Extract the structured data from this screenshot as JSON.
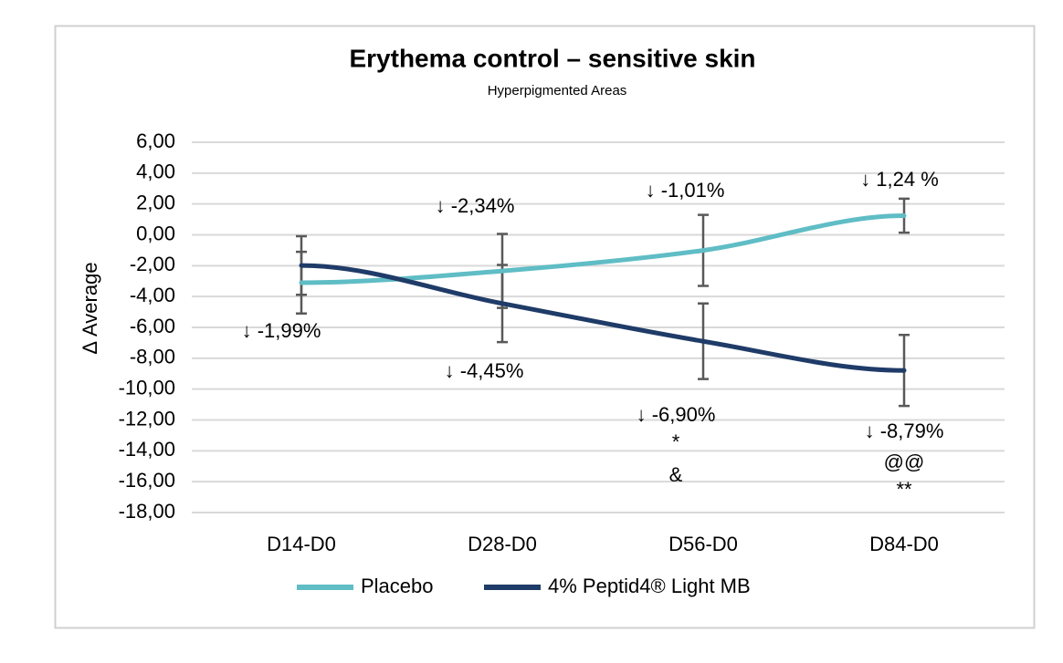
{
  "chart_data": {
    "type": "line",
    "title": "Erythema control – sensitive skin",
    "subtitle": "Hyperpigmented Areas",
    "y_label": "Δ Average",
    "categories": [
      "D14-D0",
      "D28-D0",
      "D56-D0",
      "D84-D0"
    ],
    "series": [
      {
        "name": "Placebo",
        "color": "#5fbdc5",
        "values": [
          -3.1,
          -2.34,
          -1.01,
          1.24
        ],
        "errors": [
          2.0,
          2.4,
          2.3,
          1.1
        ],
        "value_labels": [
          null,
          "↓ -2,34%",
          "↓ -1,01%",
          "↓ 1,24 %"
        ]
      },
      {
        "name": "4% Peptid4® Light MB",
        "color": "#1f3b68",
        "values": [
          -1.99,
          -4.45,
          -6.9,
          -8.79
        ],
        "errors": [
          1.9,
          2.5,
          2.45,
          2.3
        ],
        "value_labels": [
          "↓ -1,99%",
          "↓ -4,45%",
          "↓ -6,90%",
          "↓ -8,79%"
        ]
      }
    ],
    "annotations": [
      "*",
      "&",
      "@@",
      "**"
    ],
    "ylim": [
      -18,
      6
    ],
    "yticks": [
      {
        "value": 6,
        "label": "6,00"
      },
      {
        "value": 4,
        "label": "4,00"
      },
      {
        "value": 2,
        "label": "2,00"
      },
      {
        "value": 0,
        "label": "0,00"
      },
      {
        "value": -2,
        "label": "-2,00"
      },
      {
        "value": -4,
        "label": "-4,00"
      },
      {
        "value": -6,
        "label": "-6,00"
      },
      {
        "value": -8,
        "label": "-8,00"
      },
      {
        "value": -10,
        "label": "-10,00"
      },
      {
        "value": -12,
        "label": "-12,00"
      },
      {
        "value": -14,
        "label": "-14,00"
      },
      {
        "value": -16,
        "label": "-16,00"
      },
      {
        "value": -18,
        "label": "-18,00"
      }
    ],
    "grid": true,
    "error_color": "#595959"
  }
}
